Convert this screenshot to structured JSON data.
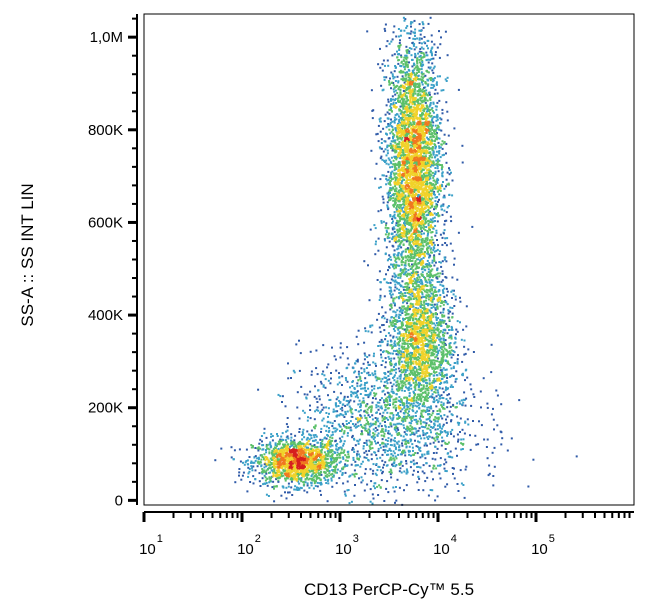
{
  "chart_data": {
    "type": "scatter",
    "style": "flow-cytometry-density-dot-plot",
    "xlabel": "CD13 PerCP-Cy™ 5.5",
    "ylabel": "SS-A :: SS INT LIN",
    "x_scale": "log",
    "xlim": [
      10,
      1000000
    ],
    "x_tick_labels": [
      {
        "base": "10",
        "exp": "1"
      },
      {
        "base": "10",
        "exp": "2"
      },
      {
        "base": "10",
        "exp": "3"
      },
      {
        "base": "10",
        "exp": "4"
      },
      {
        "base": "10",
        "exp": "5"
      }
    ],
    "x_tick_values": [
      10,
      100,
      1000,
      10000,
      100000
    ],
    "y_scale": "linear",
    "ylim": [
      -10000,
      1050000
    ],
    "y_ticks": [
      {
        "value": 0,
        "label": "0"
      },
      {
        "value": 200000,
        "label": "200K"
      },
      {
        "value": 400000,
        "label": "400K"
      },
      {
        "value": 600000,
        "label": "600K"
      },
      {
        "value": 800000,
        "label": "800K"
      },
      {
        "value": 1000000,
        "label": "1,0M"
      }
    ],
    "grid": false,
    "populations": [
      {
        "x_center": 350,
        "y_center": 85000,
        "x_log_sd": 0.22,
        "y_sd": 25000,
        "weight": 0.17
      },
      {
        "x_center": 5500,
        "y_center": 720000,
        "x_log_sd": 0.14,
        "y_sd": 140000,
        "weight": 0.45
      },
      {
        "x_center": 6500,
        "y_center": 350000,
        "x_log_sd": 0.17,
        "y_sd": 80000,
        "weight": 0.2
      },
      {
        "x_center": 3000,
        "y_center": 170000,
        "x_log_sd": 0.45,
        "y_sd": 80000,
        "weight": 0.18
      }
    ],
    "density_colors": [
      "#2f5aa8",
      "#3aa0c8",
      "#5cc06a",
      "#f0d22a",
      "#f07820",
      "#d61f1f"
    ]
  }
}
